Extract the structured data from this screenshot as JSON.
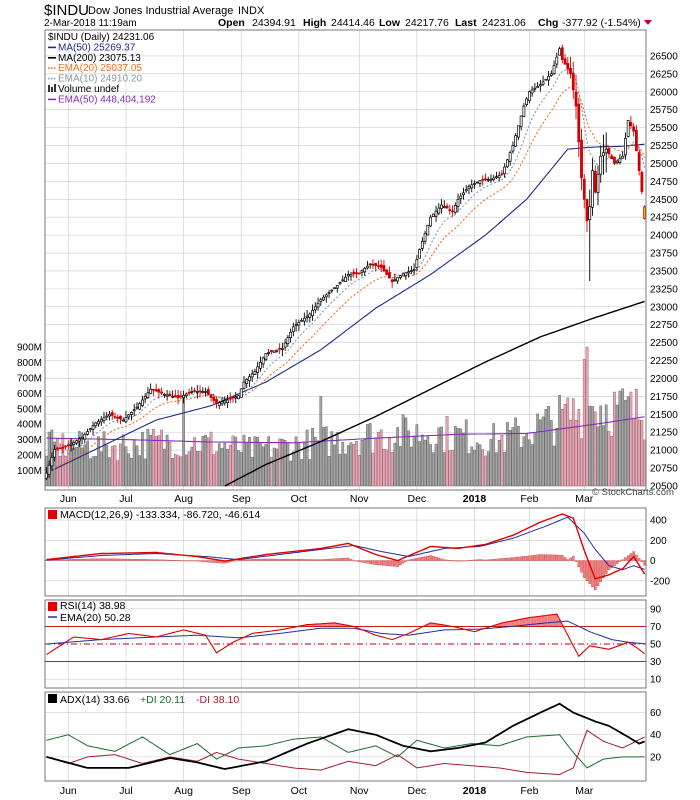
{
  "header": {
    "symbol": "$INDU",
    "name": "Dow Jones Industrial Average",
    "exchange": "INDX",
    "date": "2-Mar-2018 11:19am",
    "open_label": "Open",
    "open": "24394.91",
    "high_label": "High",
    "high": "24414.46",
    "low_label": "Low",
    "low": "24217.76",
    "last_label": "Last",
    "last": "24231.06",
    "chg_label": "Chg",
    "chg": "-377.92 (-1.54%)",
    "watermark": "© StockCharts.com"
  },
  "legend": [
    {
      "text": "$INDU (Daily) 24231.06",
      "color": "#000000",
      "swatch": "none"
    },
    {
      "text": "MA(50) 25269.37",
      "color": "#1f2a8c",
      "swatch": "line"
    },
    {
      "text": "MA(200) 23075.13",
      "color": "#000000",
      "swatch": "line"
    },
    {
      "text": "EMA(20) 25037.05",
      "color": "#f07020",
      "swatch": "dotted"
    },
    {
      "text": "EMA(10) 24910.20",
      "color": "#8a9aa8",
      "swatch": "dotted"
    },
    {
      "text": "Volume undef",
      "color": "#000000",
      "swatch": "bars"
    },
    {
      "text": "EMA(50) 448,404,192",
      "color": "#8a2bc0",
      "swatch": "line"
    }
  ],
  "chart_data": {
    "type": "candlestick-with-indicators",
    "months": [
      "Jun",
      "Jul",
      "Aug",
      "Sep",
      "Oct",
      "Nov",
      "Dec",
      "2018",
      "Feb",
      "Mar"
    ],
    "price": {
      "ylim": [
        20500,
        26750
      ],
      "ticks": [
        20500,
        20750,
        21000,
        21250,
        21500,
        21750,
        22000,
        22250,
        22500,
        22750,
        23000,
        23250,
        23500,
        23750,
        24000,
        24250,
        24500,
        24750,
        25000,
        25250,
        25500,
        25750,
        26000,
        26250,
        26500
      ],
      "close_anchors": [
        [
          0,
          20680
        ],
        [
          3,
          21010
        ],
        [
          8,
          21060
        ],
        [
          13,
          21180
        ],
        [
          18,
          21380
        ],
        [
          23,
          21500
        ],
        [
          28,
          21420
        ],
        [
          33,
          21600
        ],
        [
          38,
          21850
        ],
        [
          43,
          21780
        ],
        [
          48,
          21730
        ],
        [
          53,
          21820
        ],
        [
          58,
          21820
        ],
        [
          62,
          21650
        ],
        [
          66,
          21700
        ],
        [
          70,
          21760
        ],
        [
          72,
          21950
        ],
        [
          76,
          22100
        ],
        [
          80,
          22350
        ],
        [
          86,
          22420
        ],
        [
          90,
          22720
        ],
        [
          96,
          22900
        ],
        [
          100,
          23100
        ],
        [
          106,
          23300
        ],
        [
          110,
          23450
        ],
        [
          114,
          23470
        ],
        [
          118,
          23600
        ],
        [
          122,
          23550
        ],
        [
          126,
          23350
        ],
        [
          130,
          23460
        ],
        [
          134,
          23520
        ],
        [
          136,
          23800
        ],
        [
          140,
          24250
        ],
        [
          144,
          24420
        ],
        [
          148,
          24330
        ],
        [
          150,
          24500
        ],
        [
          154,
          24680
        ],
        [
          158,
          24760
        ],
        [
          162,
          24780
        ],
        [
          166,
          24850
        ],
        [
          170,
          25250
        ],
        [
          174,
          25800
        ],
        [
          176,
          26000
        ],
        [
          180,
          26100
        ],
        [
          184,
          26250
        ],
        [
          187,
          26600
        ],
        [
          188,
          26450
        ],
        [
          191,
          26250
        ],
        [
          193,
          25800
        ],
        [
          195,
          24800
        ],
        [
          197,
          24200
        ],
        [
          198,
          24400
        ],
        [
          199,
          24900
        ],
        [
          200,
          24600
        ],
        [
          202,
          25100
        ],
        [
          204,
          25200
        ],
        [
          207,
          25000
        ],
        [
          210,
          25100
        ],
        [
          212,
          25600
        ],
        [
          214,
          25450
        ],
        [
          216,
          24900
        ],
        [
          217,
          24608
        ],
        [
          218,
          24231
        ]
      ],
      "last_candle": {
        "open": 24394.91,
        "high": 24414.46,
        "low": 24217.76,
        "close": 24231.06
      },
      "ma50_anchors": [
        [
          0,
          20680
        ],
        [
          20,
          21050
        ],
        [
          40,
          21420
        ],
        [
          60,
          21620
        ],
        [
          80,
          21950
        ],
        [
          100,
          22400
        ],
        [
          120,
          22980
        ],
        [
          140,
          23450
        ],
        [
          160,
          24000
        ],
        [
          175,
          24500
        ],
        [
          190,
          25200
        ],
        [
          200,
          25230
        ],
        [
          210,
          25240
        ],
        [
          218,
          25269
        ]
      ],
      "ma200_anchors": [
        [
          65,
          20500
        ],
        [
          80,
          20800
        ],
        [
          100,
          21120
        ],
        [
          120,
          21470
        ],
        [
          140,
          21850
        ],
        [
          160,
          22230
        ],
        [
          180,
          22580
        ],
        [
          200,
          22850
        ],
        [
          218,
          23075
        ]
      ]
    },
    "volume": {
      "unit": "M",
      "ticks": [
        "100M",
        "200M",
        "300M",
        "400M",
        "500M",
        "600M",
        "700M",
        "800M",
        "900M"
      ],
      "ylim": [
        0,
        900
      ],
      "level_anchors": [
        [
          0,
          270
        ],
        [
          20,
          260
        ],
        [
          45,
          300
        ],
        [
          60,
          280
        ],
        [
          75,
          240
        ],
        [
          95,
          280
        ],
        [
          115,
          330
        ],
        [
          140,
          360
        ],
        [
          165,
          300
        ],
        [
          185,
          430
        ],
        [
          200,
          540
        ],
        [
          218,
          480
        ]
      ],
      "ema50_anchors": [
        [
          0,
          310
        ],
        [
          30,
          300
        ],
        [
          60,
          285
        ],
        [
          90,
          280
        ],
        [
          120,
          310
        ],
        [
          150,
          335
        ],
        [
          175,
          340
        ],
        [
          200,
          400
        ],
        [
          218,
          448
        ]
      ]
    },
    "macd": {
      "label": "MACD(12,26,9) -133.334, -86.720, -46.614",
      "ylim": [
        -330,
        480
      ],
      "ticks": [
        -200,
        0,
        200,
        400
      ],
      "macd_anchors": [
        [
          0,
          10
        ],
        [
          20,
          70
        ],
        [
          40,
          80
        ],
        [
          55,
          40
        ],
        [
          65,
          -5
        ],
        [
          80,
          60
        ],
        [
          100,
          120
        ],
        [
          110,
          170
        ],
        [
          120,
          60
        ],
        [
          128,
          0
        ],
        [
          140,
          140
        ],
        [
          150,
          120
        ],
        [
          160,
          160
        ],
        [
          170,
          250
        ],
        [
          180,
          380
        ],
        [
          188,
          460
        ],
        [
          192,
          420
        ],
        [
          196,
          100
        ],
        [
          200,
          -180
        ],
        [
          205,
          -140
        ],
        [
          210,
          -80
        ],
        [
          214,
          40
        ],
        [
          218,
          -133
        ]
      ],
      "signal_anchors": [
        [
          0,
          5
        ],
        [
          20,
          50
        ],
        [
          40,
          70
        ],
        [
          58,
          40
        ],
        [
          70,
          10
        ],
        [
          85,
          60
        ],
        [
          100,
          110
        ],
        [
          112,
          150
        ],
        [
          122,
          90
        ],
        [
          132,
          40
        ],
        [
          145,
          120
        ],
        [
          158,
          140
        ],
        [
          170,
          220
        ],
        [
          182,
          340
        ],
        [
          190,
          430
        ],
        [
          196,
          270
        ],
        [
          200,
          110
        ],
        [
          205,
          -50
        ],
        [
          210,
          -90
        ],
        [
          214,
          -50
        ],
        [
          218,
          -87
        ]
      ]
    },
    "rsi": {
      "label": "RSI(14) 38.98",
      "ema_label": "EMA(20) 50.28",
      "ylim": [
        0,
        100
      ],
      "ticks": [
        10,
        30,
        50,
        70,
        90
      ],
      "bands": [
        30,
        50,
        70
      ],
      "rsi_anchors": [
        [
          0,
          38
        ],
        [
          10,
          58
        ],
        [
          20,
          55
        ],
        [
          30,
          62
        ],
        [
          40,
          58
        ],
        [
          50,
          66
        ],
        [
          58,
          60
        ],
        [
          62,
          40
        ],
        [
          68,
          52
        ],
        [
          75,
          62
        ],
        [
          85,
          66
        ],
        [
          95,
          72
        ],
        [
          105,
          74
        ],
        [
          112,
          70
        ],
        [
          120,
          60
        ],
        [
          126,
          55
        ],
        [
          132,
          62
        ],
        [
          140,
          74
        ],
        [
          148,
          70
        ],
        [
          156,
          64
        ],
        [
          166,
          74
        ],
        [
          176,
          80
        ],
        [
          186,
          84
        ],
        [
          188,
          72
        ],
        [
          194,
          36
        ],
        [
          198,
          48
        ],
        [
          205,
          44
        ],
        [
          212,
          52
        ],
        [
          215,
          46
        ],
        [
          218,
          39
        ]
      ],
      "ema_anchors": [
        [
          0,
          50
        ],
        [
          20,
          55
        ],
        [
          40,
          58
        ],
        [
          55,
          60
        ],
        [
          70,
          57
        ],
        [
          85,
          62
        ],
        [
          100,
          68
        ],
        [
          112,
          68
        ],
        [
          122,
          62
        ],
        [
          132,
          60
        ],
        [
          145,
          66
        ],
        [
          158,
          67
        ],
        [
          170,
          70
        ],
        [
          182,
          74
        ],
        [
          190,
          76
        ],
        [
          198,
          64
        ],
        [
          206,
          55
        ],
        [
          212,
          52
        ],
        [
          218,
          50.3
        ]
      ]
    },
    "adx": {
      "label": "ADX(14) 33.66",
      "plus_di_label": "+DI 20.11",
      "minus_di_label": "-DI 38.10",
      "ylim": [
        0,
        75
      ],
      "ticks": [
        20,
        40,
        60
      ],
      "adx_anchors": [
        [
          0,
          20
        ],
        [
          15,
          10
        ],
        [
          30,
          10
        ],
        [
          45,
          19
        ],
        [
          55,
          15
        ],
        [
          65,
          9
        ],
        [
          80,
          16
        ],
        [
          95,
          32
        ],
        [
          110,
          45
        ],
        [
          120,
          40
        ],
        [
          130,
          30
        ],
        [
          140,
          25
        ],
        [
          150,
          28
        ],
        [
          160,
          33
        ],
        [
          170,
          48
        ],
        [
          180,
          60
        ],
        [
          187,
          68
        ],
        [
          192,
          60
        ],
        [
          200,
          52
        ],
        [
          205,
          48
        ],
        [
          212,
          38
        ],
        [
          216,
          32
        ],
        [
          218,
          34
        ]
      ],
      "plus_di_anchors": [
        [
          0,
          35
        ],
        [
          8,
          40
        ],
        [
          15,
          30
        ],
        [
          25,
          25
        ],
        [
          35,
          38
        ],
        [
          45,
          22
        ],
        [
          55,
          32
        ],
        [
          62,
          18
        ],
        [
          70,
          28
        ],
        [
          80,
          30
        ],
        [
          90,
          36
        ],
        [
          100,
          38
        ],
        [
          110,
          24
        ],
        [
          120,
          30
        ],
        [
          128,
          20
        ],
        [
          135,
          35
        ],
        [
          145,
          28
        ],
        [
          155,
          32
        ],
        [
          165,
          30
        ],
        [
          175,
          38
        ],
        [
          187,
          40
        ],
        [
          192,
          24
        ],
        [
          197,
          10
        ],
        [
          203,
          18
        ],
        [
          210,
          20
        ],
        [
          218,
          20
        ]
      ],
      "minus_di_anchors": [
        [
          0,
          20
        ],
        [
          8,
          14
        ],
        [
          15,
          20
        ],
        [
          25,
          22
        ],
        [
          35,
          14
        ],
        [
          45,
          20
        ],
        [
          55,
          16
        ],
        [
          62,
          24
        ],
        [
          70,
          18
        ],
        [
          80,
          14
        ],
        [
          90,
          10
        ],
        [
          100,
          8
        ],
        [
          110,
          16
        ],
        [
          120,
          12
        ],
        [
          128,
          22
        ],
        [
          135,
          10
        ],
        [
          145,
          14
        ],
        [
          155,
          12
        ],
        [
          165,
          10
        ],
        [
          175,
          6
        ],
        [
          187,
          4
        ],
        [
          192,
          10
        ],
        [
          197,
          44
        ],
        [
          203,
          34
        ],
        [
          210,
          28
        ],
        [
          218,
          38
        ]
      ]
    }
  }
}
